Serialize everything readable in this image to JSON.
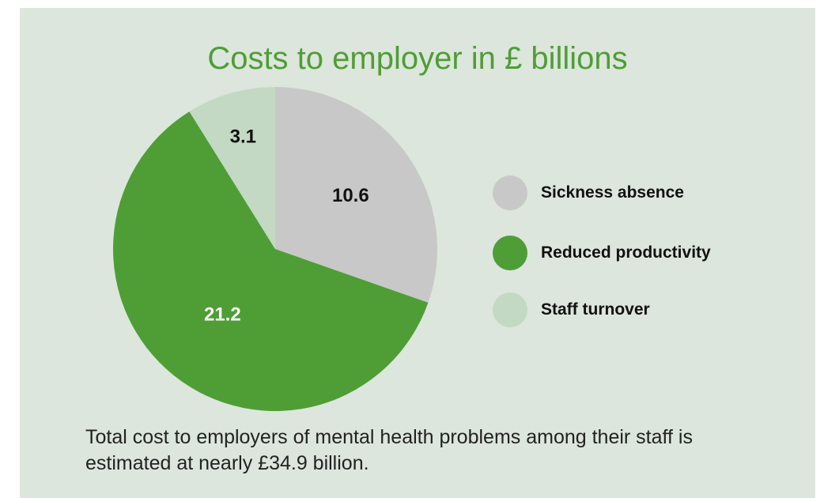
{
  "chart_data": {
    "type": "pie",
    "title": "Costs to employer in £ billions",
    "categories": [
      "Sickness absence",
      "Reduced productivity",
      "Staff turnover"
    ],
    "values": [
      10.6,
      21.2,
      3.1
    ],
    "value_labels": [
      "10.6",
      "21.2",
      "3.1"
    ],
    "colors": [
      "#c8c8c8",
      "#4e9e35",
      "#c3d9c3"
    ],
    "label_colors": [
      "#111111",
      "#ffffff",
      "#111111"
    ],
    "start_direction": "12 o'clock, clockwise",
    "legend_position": "right"
  },
  "legend": {
    "items": [
      {
        "label": "Sickness absence",
        "color": "#c8c8c8"
      },
      {
        "label": "Reduced productivity",
        "color": "#4e9e35"
      },
      {
        "label": "Staff turnover",
        "color": "#c3d9c3"
      }
    ]
  },
  "caption": "Total cost to employers of mental health problems among their staff is estimated at nearly £34.9 billion."
}
